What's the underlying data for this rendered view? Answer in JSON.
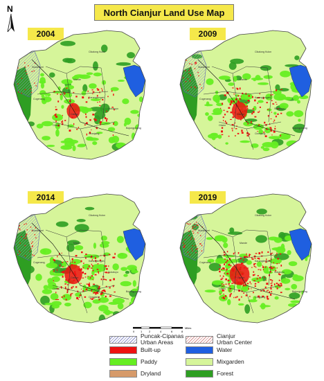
{
  "title": "North Cianjur Land Use Map",
  "north_arrow": "N",
  "panels": [
    {
      "year": "2004",
      "builtup_level": 1
    },
    {
      "year": "2009",
      "builtup_level": 2
    },
    {
      "year": "2014",
      "builtup_level": 3
    },
    {
      "year": "2019",
      "builtup_level": 4
    }
  ],
  "scale": {
    "ticks": [
      "0",
      "1",
      "2",
      "4",
      "6",
      "8"
    ],
    "unit": "Miles"
  },
  "places": [
    "Cikalong Kulon",
    "Sukaresmi",
    "Cugenang",
    "Mande",
    "Karangtengah",
    "Cianjur",
    "Cilaku",
    "Sukaluyu",
    "Ciranjang",
    "Bojongpicung"
  ],
  "legend": {
    "puncak": "Puncak-Cipanas\nUrban Areas",
    "cianjur": "Cianjur\nUrban Center",
    "builtup": "Built-up",
    "water": "Water",
    "paddy": "Paddy",
    "mixgarden": "Mixgarden",
    "dryland": "Dryland",
    "forest": "Forest"
  },
  "colors": {
    "builtup": "#ee1111",
    "water": "#1f5fe0",
    "paddy": "#66ee22",
    "mixgarden": "#d6f59a",
    "dryland": "#d69a6a",
    "forest": "#2e9e22",
    "title_bg": "#f5e84a"
  }
}
